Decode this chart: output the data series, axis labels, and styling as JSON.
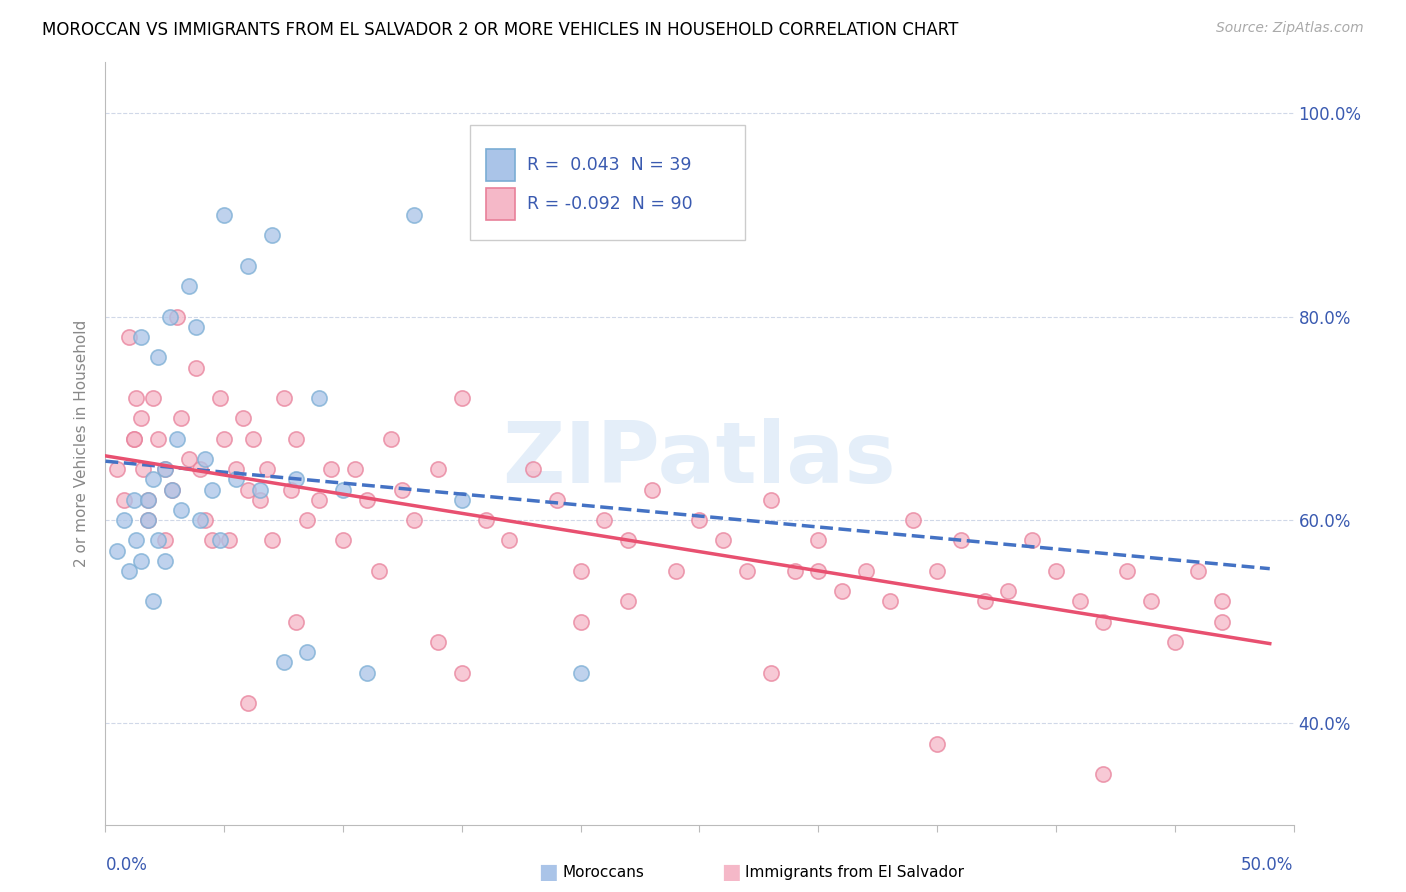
{
  "title": "MOROCCAN VS IMMIGRANTS FROM EL SALVADOR 2 OR MORE VEHICLES IN HOUSEHOLD CORRELATION CHART",
  "source": "Source: ZipAtlas.com",
  "ylabel": "2 or more Vehicles in Household",
  "color_moroccan_fill": "#aac4e8",
  "color_moroccan_edge": "#7aadd4",
  "color_salvador_fill": "#f5b8c8",
  "color_salvador_edge": "#e8809a",
  "color_moroccan_line": "#4472c4",
  "color_salvador_line": "#e85070",
  "color_blue_text": "#3a5ab0",
  "color_grid": "#d0d8e8",
  "x_min": 0.0,
  "x_max": 0.5,
  "y_min": 0.3,
  "y_max": 1.05,
  "y_ticks": [
    0.4,
    0.6,
    0.8,
    1.0
  ],
  "y_tick_labels": [
    "40.0%",
    "60.0%",
    "80.0%",
    "100.0%"
  ],
  "moroccan_x": [
    0.005,
    0.008,
    0.01,
    0.012,
    0.013,
    0.015,
    0.015,
    0.018,
    0.018,
    0.02,
    0.02,
    0.022,
    0.022,
    0.025,
    0.025,
    0.027,
    0.028,
    0.03,
    0.032,
    0.035,
    0.038,
    0.04,
    0.042,
    0.045,
    0.048,
    0.05,
    0.055,
    0.06,
    0.065,
    0.07,
    0.075,
    0.08,
    0.085,
    0.09,
    0.1,
    0.11,
    0.13,
    0.15,
    0.2
  ],
  "moroccan_y": [
    0.57,
    0.6,
    0.55,
    0.62,
    0.58,
    0.56,
    0.78,
    0.6,
    0.62,
    0.64,
    0.52,
    0.58,
    0.76,
    0.65,
    0.56,
    0.8,
    0.63,
    0.68,
    0.61,
    0.83,
    0.79,
    0.6,
    0.66,
    0.63,
    0.58,
    0.9,
    0.64,
    0.85,
    0.63,
    0.88,
    0.46,
    0.64,
    0.47,
    0.72,
    0.63,
    0.45,
    0.9,
    0.62,
    0.45
  ],
  "salvador_x": [
    0.005,
    0.008,
    0.01,
    0.012,
    0.013,
    0.015,
    0.016,
    0.018,
    0.02,
    0.022,
    0.025,
    0.028,
    0.03,
    0.032,
    0.035,
    0.038,
    0.04,
    0.042,
    0.045,
    0.048,
    0.05,
    0.052,
    0.055,
    0.058,
    0.06,
    0.062,
    0.065,
    0.068,
    0.07,
    0.075,
    0.078,
    0.08,
    0.085,
    0.09,
    0.095,
    0.1,
    0.105,
    0.11,
    0.115,
    0.12,
    0.125,
    0.13,
    0.14,
    0.15,
    0.16,
    0.17,
    0.18,
    0.19,
    0.2,
    0.21,
    0.22,
    0.23,
    0.24,
    0.25,
    0.26,
    0.27,
    0.28,
    0.29,
    0.3,
    0.31,
    0.32,
    0.33,
    0.34,
    0.35,
    0.36,
    0.37,
    0.38,
    0.39,
    0.4,
    0.41,
    0.42,
    0.43,
    0.44,
    0.45,
    0.46,
    0.47,
    0.28,
    0.35,
    0.2,
    0.15,
    0.06,
    0.025,
    0.018,
    0.012,
    0.08,
    0.14,
    0.22,
    0.3,
    0.42,
    0.47
  ],
  "salvador_y": [
    0.65,
    0.62,
    0.78,
    0.68,
    0.72,
    0.7,
    0.65,
    0.6,
    0.72,
    0.68,
    0.65,
    0.63,
    0.8,
    0.7,
    0.66,
    0.75,
    0.65,
    0.6,
    0.58,
    0.72,
    0.68,
    0.58,
    0.65,
    0.7,
    0.63,
    0.68,
    0.62,
    0.65,
    0.58,
    0.72,
    0.63,
    0.68,
    0.6,
    0.62,
    0.65,
    0.58,
    0.65,
    0.62,
    0.55,
    0.68,
    0.63,
    0.6,
    0.65,
    0.72,
    0.6,
    0.58,
    0.65,
    0.62,
    0.55,
    0.6,
    0.58,
    0.63,
    0.55,
    0.6,
    0.58,
    0.55,
    0.62,
    0.55,
    0.58,
    0.53,
    0.55,
    0.52,
    0.6,
    0.55,
    0.58,
    0.52,
    0.53,
    0.58,
    0.55,
    0.52,
    0.5,
    0.55,
    0.52,
    0.48,
    0.55,
    0.52,
    0.45,
    0.38,
    0.5,
    0.45,
    0.42,
    0.58,
    0.62,
    0.68,
    0.5,
    0.48,
    0.52,
    0.55,
    0.35,
    0.5
  ]
}
